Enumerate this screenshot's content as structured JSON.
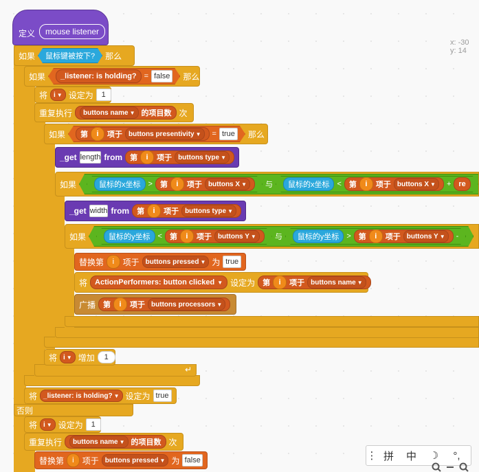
{
  "coords": {
    "x": "x: -30",
    "y": "y: 14"
  },
  "define": {
    "label": "定义",
    "name": "mouse listener"
  },
  "if_mouse": {
    "if": "如果",
    "cond": "鼠标键被按下?",
    "then": "那么"
  },
  "if_holding": {
    "if": "如果",
    "var": "_listener: is holding?",
    "eq": "=",
    "val": "false",
    "then": "那么"
  },
  "set_i": {
    "set": "将",
    "var": "i",
    "to": "设定为",
    "val": "1"
  },
  "repeat1": {
    "label": "重复执行",
    "list": "buttons name",
    "suffix": "的项目数",
    "times": "次"
  },
  "if_visible": {
    "if": "如果",
    "item": "第",
    "i": "i",
    "of": "项于",
    "list": "buttons presentivity",
    "eq": "=",
    "val": "true",
    "then": "那么"
  },
  "get_length": {
    "get": "_get",
    "field": "length",
    "from": "from",
    "item": "第",
    "i": "i",
    "of": "项于",
    "list": "buttons type"
  },
  "if_x": {
    "if": "如果",
    "mx": "鼠标的x坐标",
    "gt": ">",
    "item": "第",
    "i": "i",
    "of": "项于",
    "list": "buttons X",
    "and": "与",
    "mx2": "鼠标的x坐标",
    "lt": "<",
    "item2": "第",
    "i2": "i",
    "of2": "项于",
    "list2": "buttons X",
    "plus": "+",
    "rest": "re"
  },
  "get_width": {
    "get": "_get",
    "field": "width",
    "from": "from",
    "item": "第",
    "i": "i",
    "of": "项于",
    "list": "buttons type"
  },
  "if_y": {
    "if": "如果",
    "my": "鼠标的y坐标",
    "lt": "<",
    "item": "第",
    "i": "i",
    "of": "项于",
    "list": "buttons Y",
    "and": "与",
    "my2": "鼠标的y坐标",
    "gt": ">",
    "item2": "第",
    "i2": "i",
    "of2": "项于",
    "list2": "buttons Y",
    "minus": "-"
  },
  "replace1": {
    "label": "替换第",
    "i": "i",
    "of": "项于",
    "list": "buttons pressed",
    "as": "为",
    "val": "true"
  },
  "set_action": {
    "set": "将",
    "var": "ActionPerformers: button clicked",
    "to": "设定为",
    "item": "第",
    "i": "i",
    "of": "项于",
    "list": "buttons name"
  },
  "broadcast": {
    "label": "广播",
    "item": "第",
    "i": "i",
    "of": "项于",
    "list": "buttons processors"
  },
  "inc_i": {
    "set": "将",
    "var": "i",
    "inc": "增加",
    "val": "1"
  },
  "set_holding": {
    "set": "将",
    "var": "_listener: is holding?",
    "to": "设定为",
    "val": "true"
  },
  "else": {
    "label": "否则"
  },
  "set_i2": {
    "set": "将",
    "var": "i",
    "to": "设定为",
    "val": "1"
  },
  "repeat2": {
    "label": "重复执行",
    "list": "buttons name",
    "suffix": "的项目数",
    "times": "次"
  },
  "replace2": {
    "label": "替换第",
    "i": "i",
    "of": "项于",
    "list": "buttons pressed",
    "as": "为",
    "val": "false"
  },
  "toolbar": {
    "grip": "⋮",
    "pin": "拼",
    "zhong": "中",
    "moon": "☽",
    "punct": "°,"
  }
}
